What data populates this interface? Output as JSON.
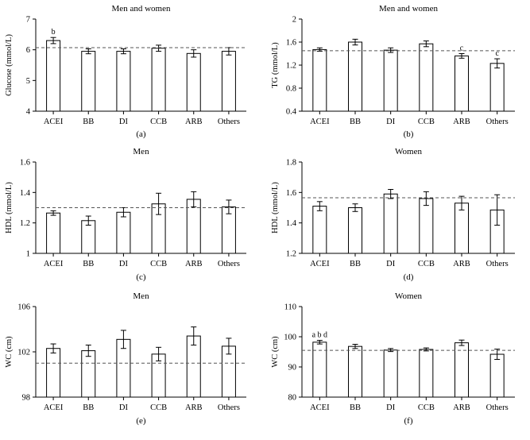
{
  "chart_data": [
    {
      "panel": "(a)",
      "type": "bar",
      "title": "Men and women",
      "ylabel": "Glucose (mmol/L)",
      "categories": [
        "ACEI",
        "BB",
        "DI",
        "CCB",
        "ARB",
        "Others"
      ],
      "values": [
        6.3,
        5.95,
        5.95,
        6.05,
        5.88,
        5.95
      ],
      "errors": [
        0.1,
        0.08,
        0.08,
        0.1,
        0.12,
        0.12
      ],
      "reference": 6.07,
      "ylim": [
        4,
        7
      ],
      "yticks": [
        "4",
        "5",
        "6",
        "7"
      ],
      "annotations": [
        "b",
        "",
        "",
        "",
        "",
        ""
      ]
    },
    {
      "panel": "(b)",
      "type": "bar",
      "title": "Men and women",
      "ylabel": "TG (mmol/L)",
      "categories": [
        "ACEI",
        "BB",
        "DI",
        "CCB",
        "ARB",
        "Others"
      ],
      "values": [
        1.47,
        1.6,
        1.46,
        1.57,
        1.36,
        1.23
      ],
      "errors": [
        0.03,
        0.05,
        0.04,
        0.05,
        0.04,
        0.08
      ],
      "reference": 1.45,
      "ylim": [
        0.4,
        2
      ],
      "yticks": [
        "0.4",
        "0.8",
        "1.2",
        "1.6",
        "2"
      ],
      "annotations": [
        "",
        "",
        "",
        "",
        "c",
        "c"
      ]
    },
    {
      "panel": "(c)",
      "type": "bar",
      "title": "Men",
      "ylabel": "HDL (mmol/L)",
      "categories": [
        "ACEI",
        "BB",
        "DI",
        "CCB",
        "ARB",
        "Others"
      ],
      "values": [
        1.265,
        1.215,
        1.27,
        1.325,
        1.355,
        1.305
      ],
      "errors": [
        0.015,
        0.03,
        0.03,
        0.07,
        0.05,
        0.045
      ],
      "reference": 1.3,
      "ylim": [
        1,
        1.6
      ],
      "yticks": [
        "1",
        "1.2",
        "1.4",
        "1.6"
      ],
      "annotations": [
        "",
        "",
        "",
        "",
        "",
        ""
      ]
    },
    {
      "panel": "(d)",
      "type": "bar",
      "title": "Women",
      "ylabel": "HDL (mmol/L)",
      "categories": [
        "ACEI",
        "BB",
        "DI",
        "CCB",
        "ARB",
        "Others"
      ],
      "values": [
        1.51,
        1.5,
        1.59,
        1.56,
        1.53,
        1.485
      ],
      "errors": [
        0.03,
        0.025,
        0.03,
        0.045,
        0.045,
        0.1
      ],
      "reference": 1.565,
      "ylim": [
        1.2,
        1.8
      ],
      "yticks": [
        "1.2",
        "1.4",
        "1.6",
        "1.8"
      ],
      "annotations": [
        "",
        "",
        "",
        "",
        "",
        ""
      ]
    },
    {
      "panel": "(e)",
      "type": "bar",
      "title": "Men",
      "ylabel": "WC (cm)",
      "categories": [
        "ACEI",
        "BB",
        "DI",
        "CCB",
        "ARB",
        "Others"
      ],
      "values": [
        102.3,
        102.1,
        103.1,
        101.8,
        103.4,
        102.5
      ],
      "errors": [
        0.4,
        0.5,
        0.8,
        0.6,
        0.8,
        0.7
      ],
      "reference": 101.0,
      "ylim": [
        98,
        106
      ],
      "yticks": [
        "98",
        "102",
        "106"
      ],
      "annotations": [
        "",
        "",
        "",
        "",
        "",
        ""
      ]
    },
    {
      "panel": "(f)",
      "type": "bar",
      "title": "Women",
      "ylabel": "WC (cm)",
      "categories": [
        "ACEI",
        "BB",
        "DI",
        "CCB",
        "ARB",
        "Others"
      ],
      "values": [
        98.2,
        96.8,
        95.6,
        95.8,
        98.0,
        94.2
      ],
      "errors": [
        0.6,
        0.7,
        0.5,
        0.5,
        0.9,
        1.7
      ],
      "reference": 95.5,
      "ylim": [
        80,
        110
      ],
      "yticks": [
        "80",
        "90",
        "100",
        "110"
      ],
      "annotations": [
        "a b d",
        "",
        "",
        "",
        "",
        ""
      ]
    }
  ]
}
